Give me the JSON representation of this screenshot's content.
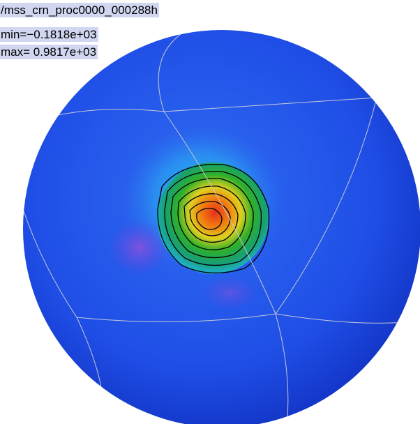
{
  "labels": {
    "title": "/mss_crn_proc0000_000288h",
    "min": "min=−0.1818e+03",
    "max": "max= 0.9817e+03"
  }
}
